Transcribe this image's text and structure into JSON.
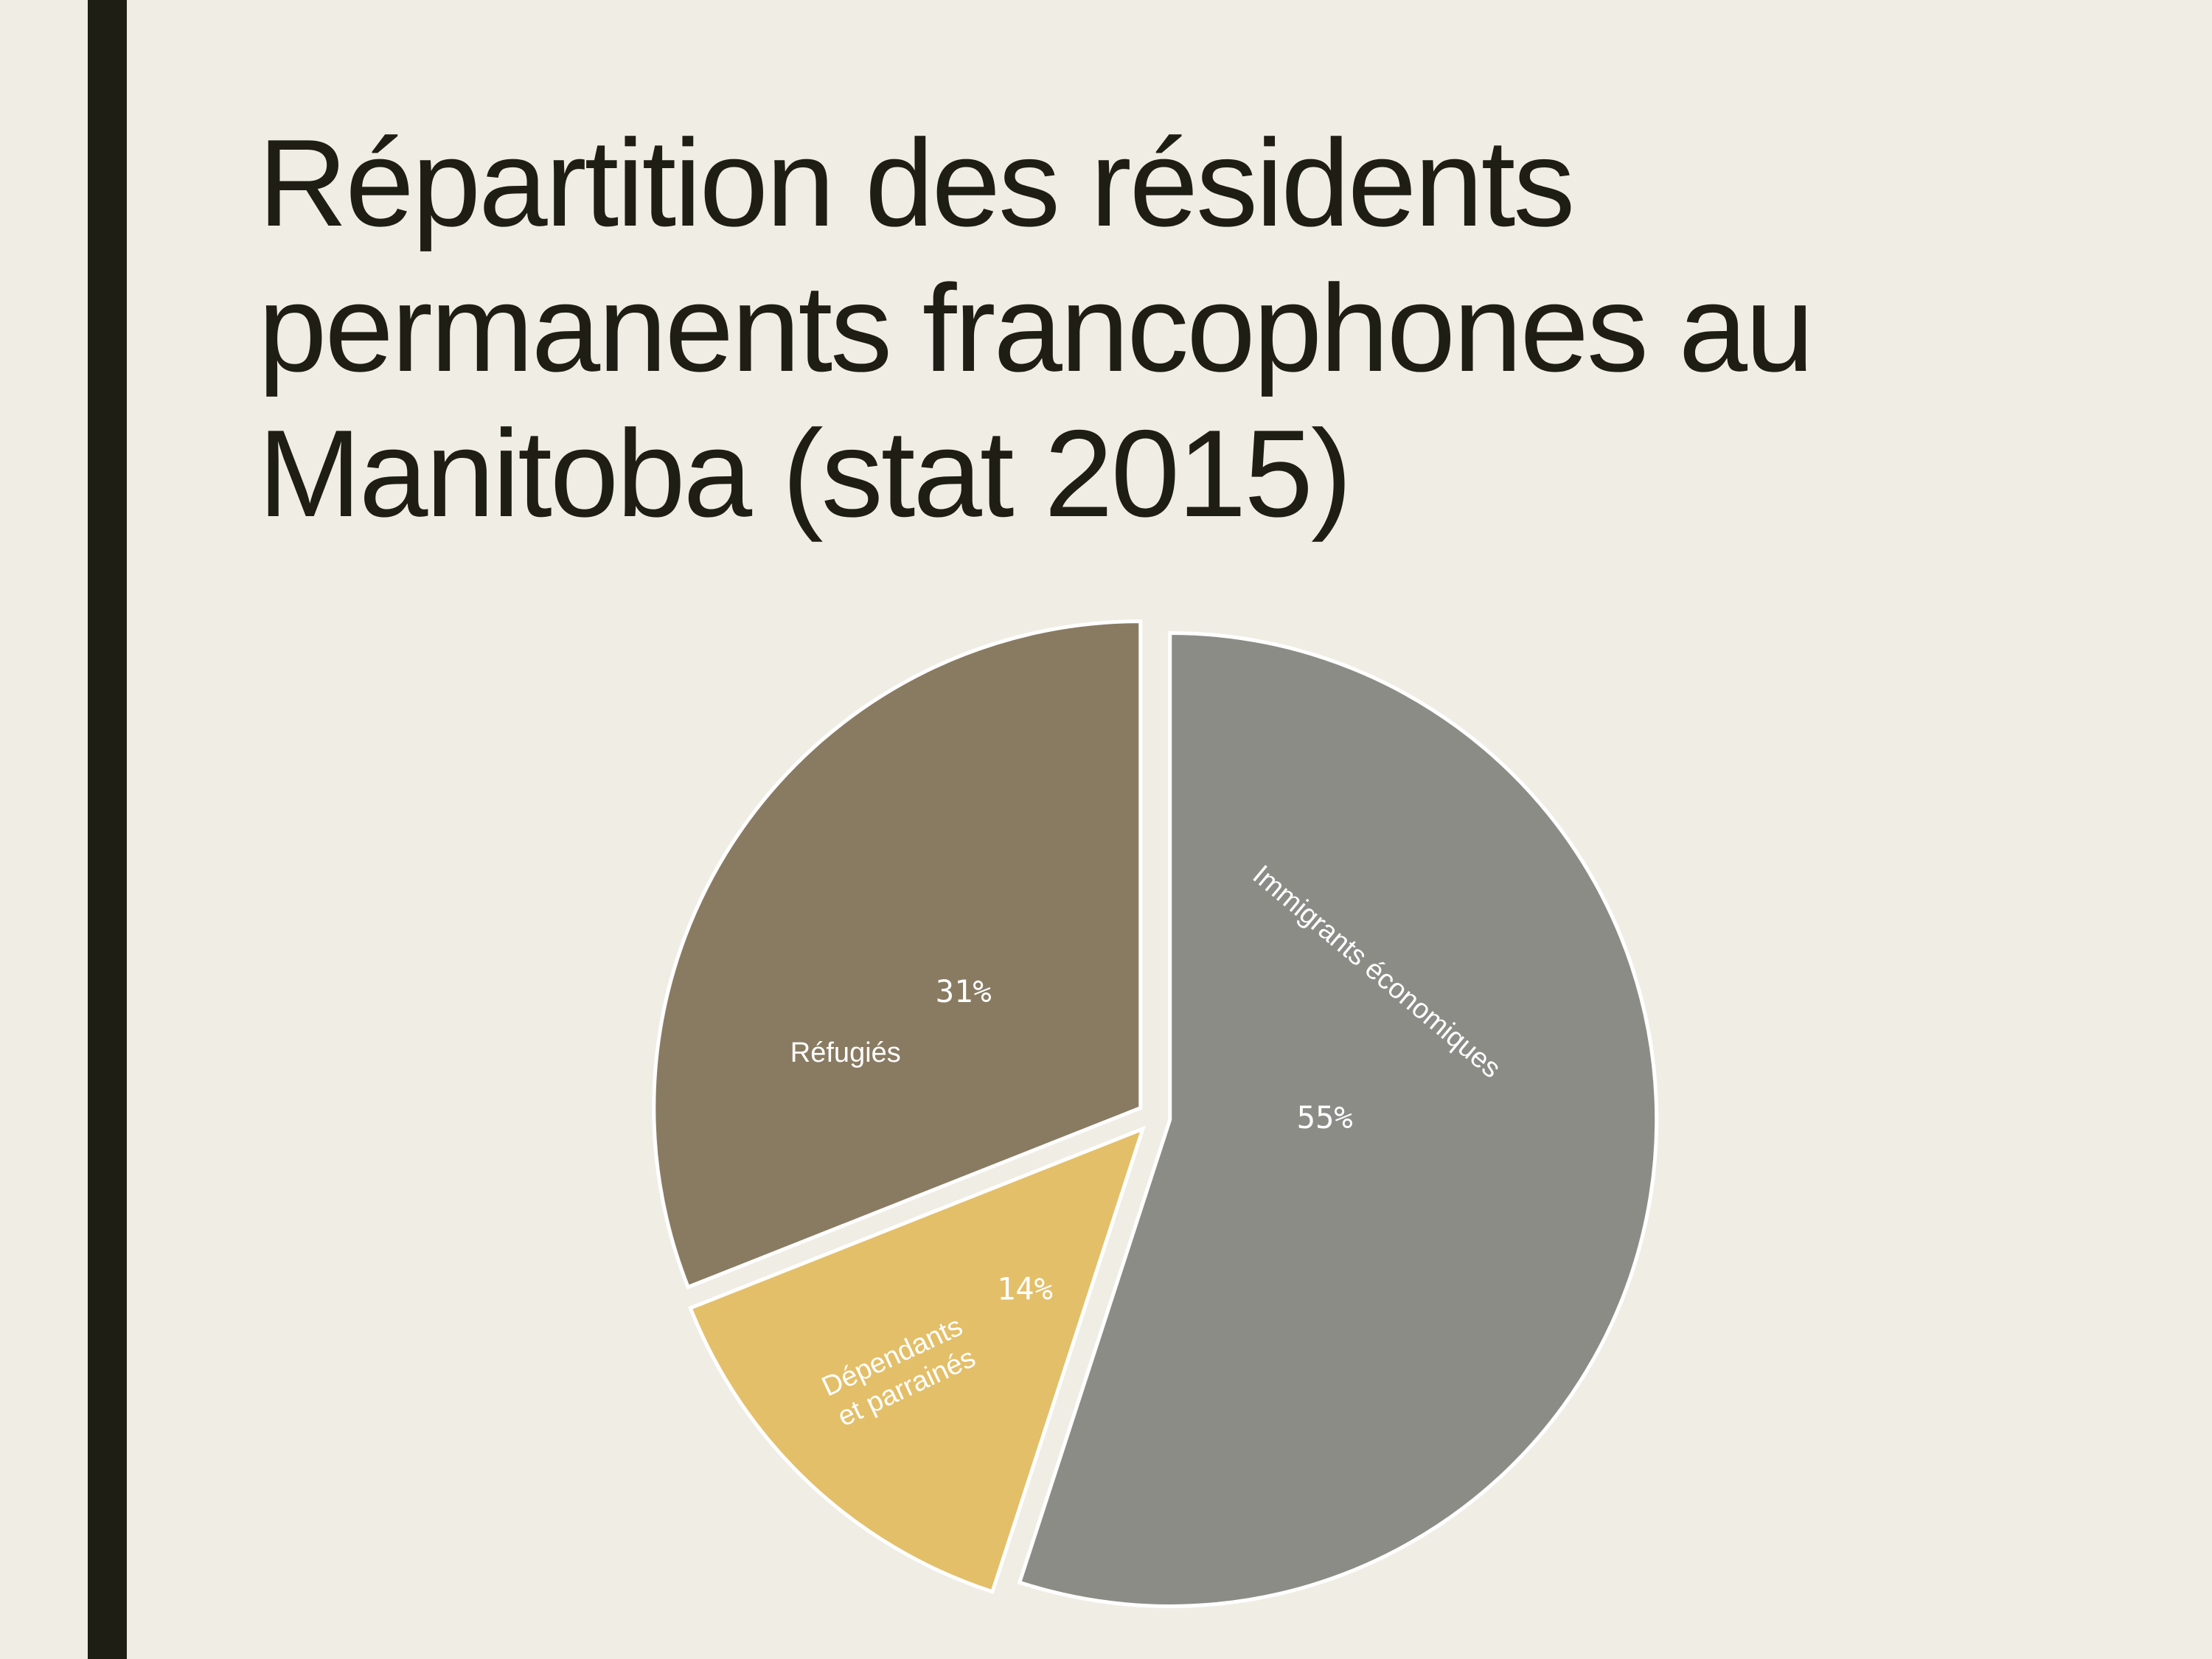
{
  "chart_data": {
    "type": "pie",
    "title": "Répartition des résidents permanents francophones au Manitoba (stat 2015)",
    "categories": [
      "Immigrants économiques",
      "Dépendants et parrainés",
      "Réfugiés"
    ],
    "values": [
      55,
      14,
      31
    ],
    "value_labels": [
      "55%",
      "14%",
      "31%"
    ],
    "colors": [
      "#8c8c87",
      "#e3bf69",
      "#897b62"
    ]
  }
}
